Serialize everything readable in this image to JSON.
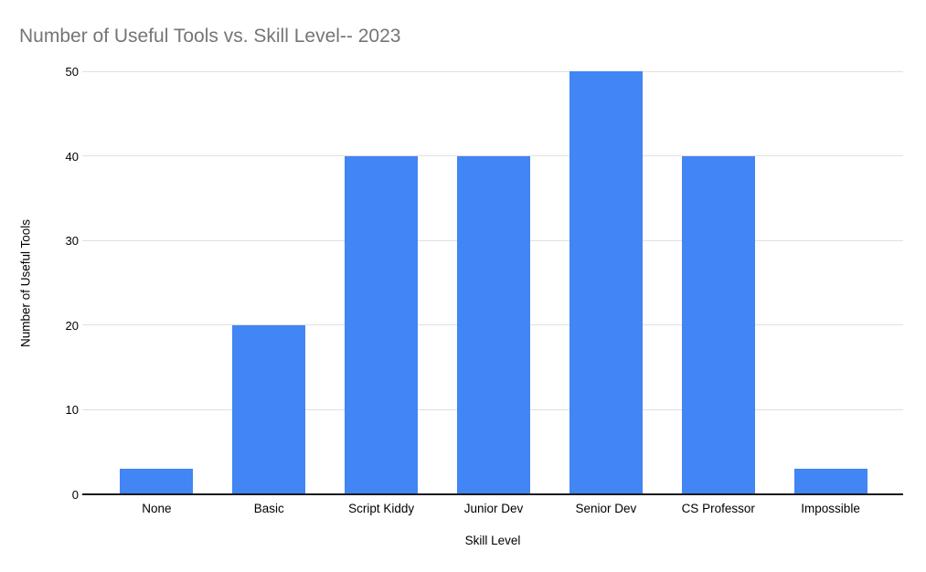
{
  "chart_data": {
    "type": "bar",
    "title": "Number of Useful Tools vs. Skill Level-- 2023",
    "xlabel": "Skill Level",
    "ylabel": "Number of Useful Tools",
    "categories": [
      "None",
      "Basic",
      "Script Kiddy",
      "Junior Dev",
      "Senior Dev",
      "CS Professor",
      "Impossible"
    ],
    "values": [
      3,
      20,
      40,
      40,
      50,
      40,
      3
    ],
    "ylim": [
      0,
      50
    ],
    "yticks": [
      0,
      10,
      20,
      30,
      40,
      50
    ],
    "grid": "horizontal",
    "legend_position": "none",
    "colors": {
      "bar": "#4285f4",
      "gridline": "#e0e0e0",
      "axis_line": "#1a1a1a",
      "title_text": "#757575",
      "label_text": "#000000",
      "background": "#ffffff"
    }
  }
}
